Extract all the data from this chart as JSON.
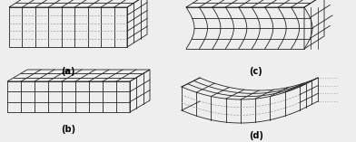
{
  "fig_width": 3.92,
  "fig_height": 1.57,
  "dpi": 100,
  "background": "#eeeeee",
  "label_a": "(a)",
  "label_b": "(b)",
  "label_c": "(c)",
  "label_d": "(d)",
  "grid_color": "#222222",
  "dashed_color": "#999999",
  "label_fontsize": 7
}
